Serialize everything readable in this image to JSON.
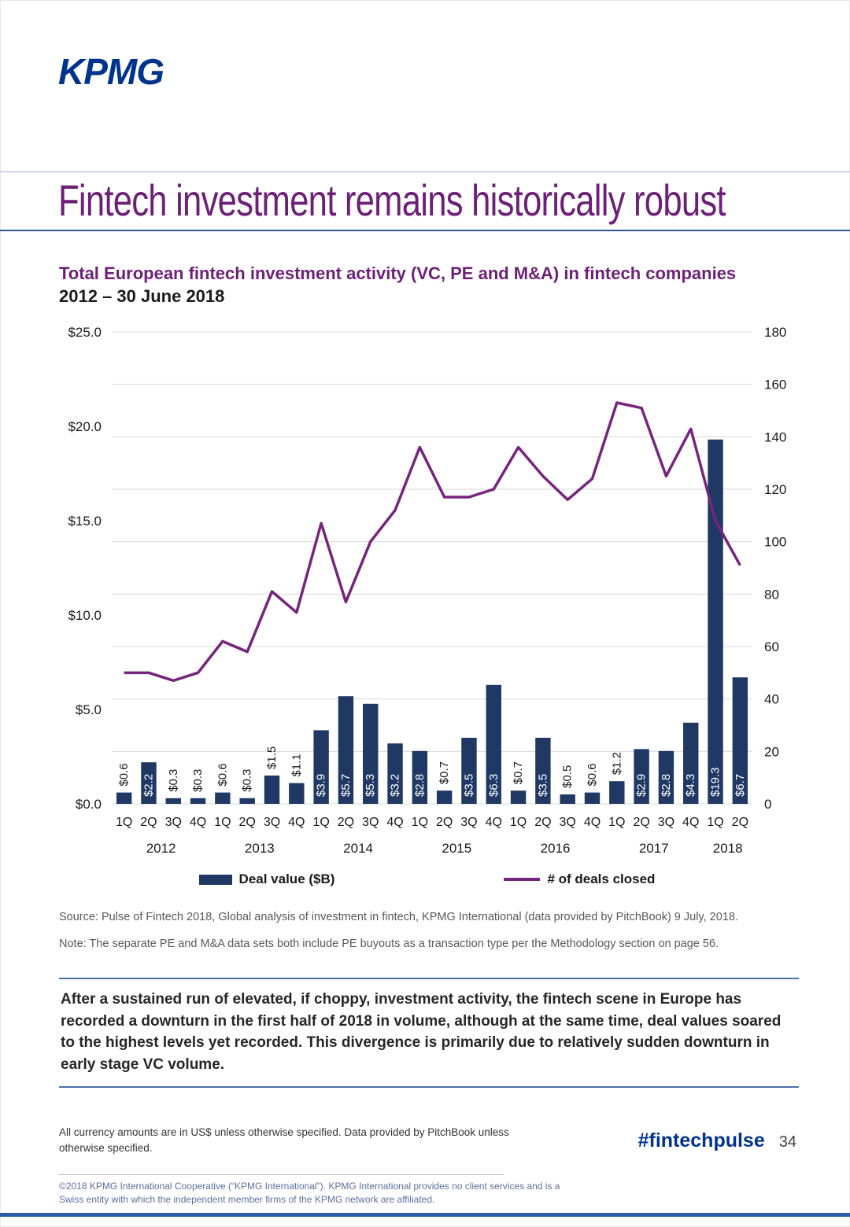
{
  "page": {
    "logo": "KPMG",
    "title": "Fintech investment remains historically robust"
  },
  "chart_data": {
    "type": "bar+line",
    "title": "Total European fintech investment activity (VC, PE and M&A) in fintech companies",
    "subtitle": "2012 – 30 June 2018",
    "categories": [
      "1Q",
      "2Q",
      "3Q",
      "4Q",
      "1Q",
      "2Q",
      "3Q",
      "4Q",
      "1Q",
      "2Q",
      "3Q",
      "4Q",
      "1Q",
      "2Q",
      "3Q",
      "4Q",
      "1Q",
      "2Q",
      "3Q",
      "4Q",
      "1Q",
      "2Q",
      "3Q",
      "4Q",
      "1Q",
      "2Q"
    ],
    "year_groups": [
      {
        "label": "2012",
        "quarters": 4
      },
      {
        "label": "2013",
        "quarters": 4
      },
      {
        "label": "2014",
        "quarters": 4
      },
      {
        "label": "2015",
        "quarters": 4
      },
      {
        "label": "2016",
        "quarters": 4
      },
      {
        "label": "2017",
        "quarters": 4
      },
      {
        "label": "2018",
        "quarters": 2
      }
    ],
    "series": [
      {
        "name": "Deal value ($B)",
        "type": "bar",
        "axis": "left",
        "color": "#1F3864",
        "values": [
          0.6,
          2.2,
          0.3,
          0.3,
          0.6,
          0.3,
          1.5,
          1.1,
          3.9,
          5.7,
          5.3,
          3.2,
          2.8,
          0.7,
          3.5,
          6.3,
          0.7,
          3.5,
          0.5,
          0.6,
          1.2,
          2.9,
          2.8,
          4.3,
          19.3,
          6.7
        ],
        "labels": [
          "$0.6",
          "$2.2",
          "$0.3",
          "$0.3",
          "$0.6",
          "$0.3",
          "$1.5",
          "$1.1",
          "$3.9",
          "$5.7",
          "$5.3",
          "$3.2",
          "$2.8",
          "$0.7",
          "$3.5",
          "$6.3",
          "$0.7",
          "$3.5",
          "$0.5",
          "$0.6",
          "$1.2",
          "$2.9",
          "$2.8",
          "$4.3",
          "$19.3",
          "$6.7"
        ]
      },
      {
        "name": "# of deals closed",
        "type": "line",
        "axis": "right",
        "color": "#76257D",
        "values": [
          50,
          50,
          47,
          50,
          62,
          58,
          81,
          73,
          107,
          77,
          100,
          112,
          136,
          117,
          117,
          120,
          136,
          125,
          116,
          124,
          153,
          151,
          125,
          143,
          108,
          91
        ]
      }
    ],
    "left_axis": {
      "min": 0,
      "max": 25,
      "tick_values": [
        0,
        5,
        10,
        15,
        20,
        25
      ],
      "tick_labels": [
        "$0.0",
        "$5.0",
        "$10.0",
        "$15.0",
        "$20.0",
        "$25.0"
      ]
    },
    "right_axis": {
      "min": 0,
      "max": 180,
      "tick_values": [
        0,
        20,
        40,
        60,
        80,
        100,
        120,
        140,
        160,
        180
      ]
    },
    "grid": true,
    "legend_position": "bottom"
  },
  "notes": {
    "source": "Source: Pulse of Fintech 2018, Global analysis of investment in fintech, KPMG International (data provided by PitchBook) 9 July, 2018.",
    "methodology": "Note: The separate PE and M&A data sets both include PE buyouts as a transaction type per the Methodology section on page 56."
  },
  "commentary": "After a sustained run of elevated, if choppy, investment activity, the fintech scene in Europe has recorded a downturn in the first half of 2018 in volume, although at the same time, deal values soared to the highest levels yet recorded. This divergence is primarily due to relatively sudden downturn in early stage VC volume.",
  "footer": {
    "currency_note": "All currency amounts are in US$ unless otherwise specified. Data provided by PitchBook unless otherwise specified.",
    "hashtag": "#fintechpulse",
    "page_number": "34",
    "copyright": "©2018 KPMG International Cooperative (“KPMG International”). KPMG International provides no client services and is a Swiss entity with which the independent member firms of the KPMG network are affiliated."
  }
}
